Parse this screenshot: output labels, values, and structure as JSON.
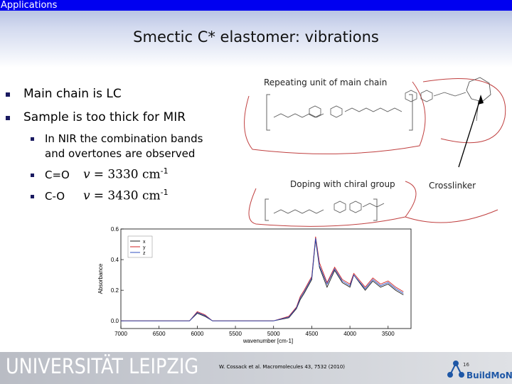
{
  "window": {
    "app_label": "Applications"
  },
  "slide": {
    "title": "Smectic C* elastomer: vibrations",
    "bullets": [
      {
        "text": "Main chain is LC"
      },
      {
        "text": "Sample is too thick for MIR"
      }
    ],
    "sub_bullets": {
      "nir_line1": "In NIR the combination bands",
      "nir_line2": "and overtones are observed",
      "co_double": "C=O",
      "co_single": "C-O",
      "nu_symbol": "v",
      "co_double_value": "= 3330 cm",
      "co_single_value": "= 3430 cm",
      "unit_exponent": "-1"
    },
    "captions": {
      "repeating_unit": "Repeating unit of main chain",
      "doping": "Doping with chiral group",
      "crosslinker": "Crosslinker"
    },
    "footer": {
      "university": "UNIVERSITÄT LEIPZIG",
      "reference": "W. Cossack et al. Macromolecules 43, 7532 (2010)",
      "page_number": "16",
      "logo_text": "BuildMoNa"
    },
    "colors": {
      "top_bar": "#0000f0",
      "bullet": "#1a1a60",
      "series_x": "#1a1a1a",
      "series_y": "#d02020",
      "series_z": "#3050c0"
    }
  },
  "chart_data": {
    "type": "line",
    "xlabel": "wavenumber [cm-1]",
    "ylabel": "Absorbance",
    "xlim": [
      7000,
      3200
    ],
    "ylim": [
      -0.05,
      0.6
    ],
    "x_ticks": [
      7000,
      6500,
      6000,
      5500,
      5000,
      4500,
      4000,
      3500
    ],
    "y_ticks": [
      0.0,
      0.2,
      0.4,
      0.6
    ],
    "legend_position": "top-left",
    "series": [
      {
        "name": "x",
        "x": [
          7000,
          6500,
          6100,
          6000,
          5900,
          5800,
          5500,
          5000,
          4800,
          4700,
          4650,
          4600,
          4500,
          4450,
          4400,
          4300,
          4200,
          4100,
          4000,
          3950,
          3800,
          3700,
          3600,
          3500,
          3400,
          3300
        ],
        "y": [
          0.0,
          0.0,
          0.0,
          0.05,
          0.03,
          0.0,
          0.0,
          0.0,
          0.02,
          0.08,
          0.14,
          0.18,
          0.27,
          0.53,
          0.35,
          0.22,
          0.33,
          0.25,
          0.22,
          0.3,
          0.2,
          0.26,
          0.22,
          0.24,
          0.2,
          0.17
        ]
      },
      {
        "name": "y",
        "x": [
          7000,
          6500,
          6100,
          6000,
          5900,
          5800,
          5500,
          5000,
          4800,
          4700,
          4650,
          4600,
          4500,
          4450,
          4400,
          4300,
          4200,
          4100,
          4000,
          3950,
          3800,
          3700,
          3600,
          3500,
          3400,
          3300
        ],
        "y": [
          0.0,
          0.0,
          0.0,
          0.06,
          0.04,
          0.0,
          0.0,
          0.0,
          0.03,
          0.09,
          0.16,
          0.2,
          0.29,
          0.55,
          0.38,
          0.25,
          0.35,
          0.27,
          0.24,
          0.31,
          0.22,
          0.28,
          0.24,
          0.26,
          0.22,
          0.19
        ]
      },
      {
        "name": "z",
        "x": [
          7000,
          6500,
          6100,
          6000,
          5900,
          5800,
          5500,
          5000,
          4800,
          4700,
          4650,
          4600,
          4500,
          4450,
          4400,
          4300,
          4200,
          4100,
          4000,
          3950,
          3800,
          3700,
          3600,
          3500,
          3400,
          3300
        ],
        "y": [
          0.0,
          0.0,
          0.0,
          0.055,
          0.035,
          0.0,
          0.0,
          0.0,
          0.025,
          0.085,
          0.15,
          0.19,
          0.28,
          0.54,
          0.36,
          0.24,
          0.34,
          0.26,
          0.23,
          0.3,
          0.21,
          0.27,
          0.23,
          0.25,
          0.21,
          0.18
        ]
      }
    ]
  }
}
